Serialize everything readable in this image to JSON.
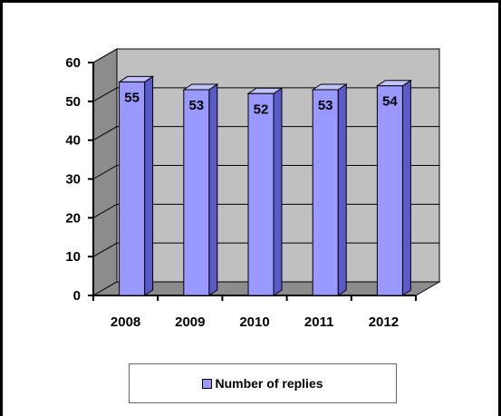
{
  "chart_data": {
    "type": "bar",
    "categories": [
      "2008",
      "2009",
      "2010",
      "2011",
      "2012"
    ],
    "series": [
      {
        "name": "Number of replies",
        "values": [
          55,
          53,
          52,
          53,
          54
        ]
      }
    ],
    "data_labels": [
      "55",
      "53",
      "52",
      "53",
      "54"
    ],
    "ylim": [
      0,
      60
    ],
    "yticks": [
      "0",
      "10",
      "20",
      "30",
      "40",
      "50",
      "60"
    ],
    "grid": true,
    "legend_position": "bottom",
    "colors": {
      "bar_front": "#9999ff",
      "bar_side": "#5a5ac8",
      "bar_top": "#c2c2ff",
      "wall": "#c0c0c0",
      "floor": "#8c8c8c"
    }
  }
}
